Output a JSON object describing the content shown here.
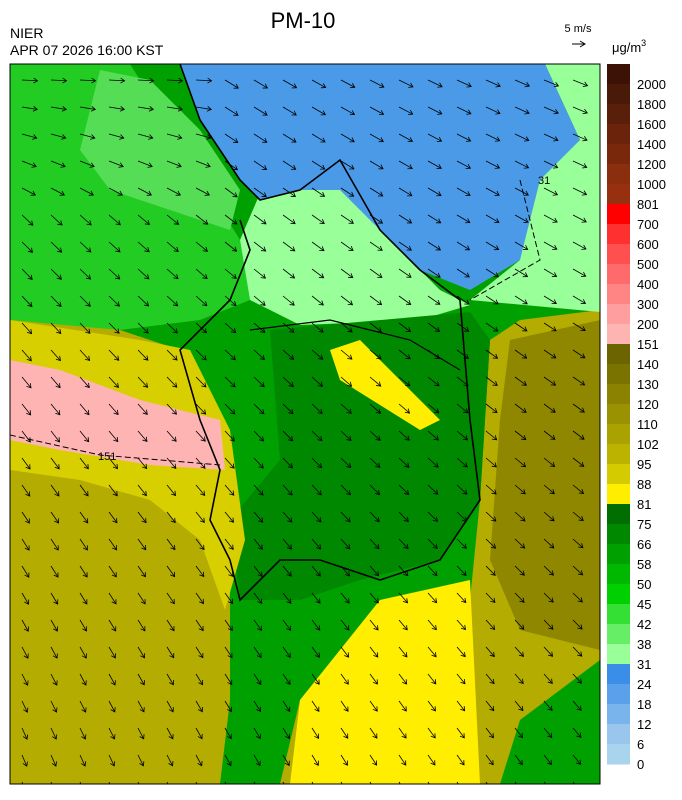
{
  "header": {
    "title": "PM-10",
    "agency": "NIER",
    "datetime": "APR 07 2026 16:00 KST",
    "wind_scale": "5 m/s",
    "unit": "μg/m",
    "unit_sup": "3"
  },
  "colorbar": {
    "labels": [
      2000,
      1800,
      1600,
      1400,
      1200,
      1000,
      801,
      700,
      600,
      500,
      400,
      300,
      200,
      151,
      140,
      130,
      120,
      110,
      102,
      95,
      88,
      81,
      75,
      66,
      58,
      50,
      45,
      42,
      38,
      31,
      24,
      18,
      12,
      6,
      0
    ],
    "colors": [
      "#3b1205",
      "#4a1a08",
      "#5a1f0a",
      "#6b230b",
      "#7a280c",
      "#8a2e0d",
      "#96300e",
      "#ff0000",
      "#ff3030",
      "#ff5050",
      "#ff6a6a",
      "#ff8585",
      "#ff9e9e",
      "#ffb4b4",
      "#6b6400",
      "#7a7300",
      "#8a8200",
      "#9a9200",
      "#aaa200",
      "#bcb300",
      "#d4cb00",
      "#ffee00",
      "#006e00",
      "#008800",
      "#00a000",
      "#00b800",
      "#00d000",
      "#33e033",
      "#66ee66",
      "#99ff99",
      "#3a8ee8",
      "#5aa0ea",
      "#7ab4ec",
      "#9ac6ee",
      "#a8d4ee"
    ]
  },
  "map": {
    "contour_labels": [
      "31",
      "151"
    ]
  }
}
